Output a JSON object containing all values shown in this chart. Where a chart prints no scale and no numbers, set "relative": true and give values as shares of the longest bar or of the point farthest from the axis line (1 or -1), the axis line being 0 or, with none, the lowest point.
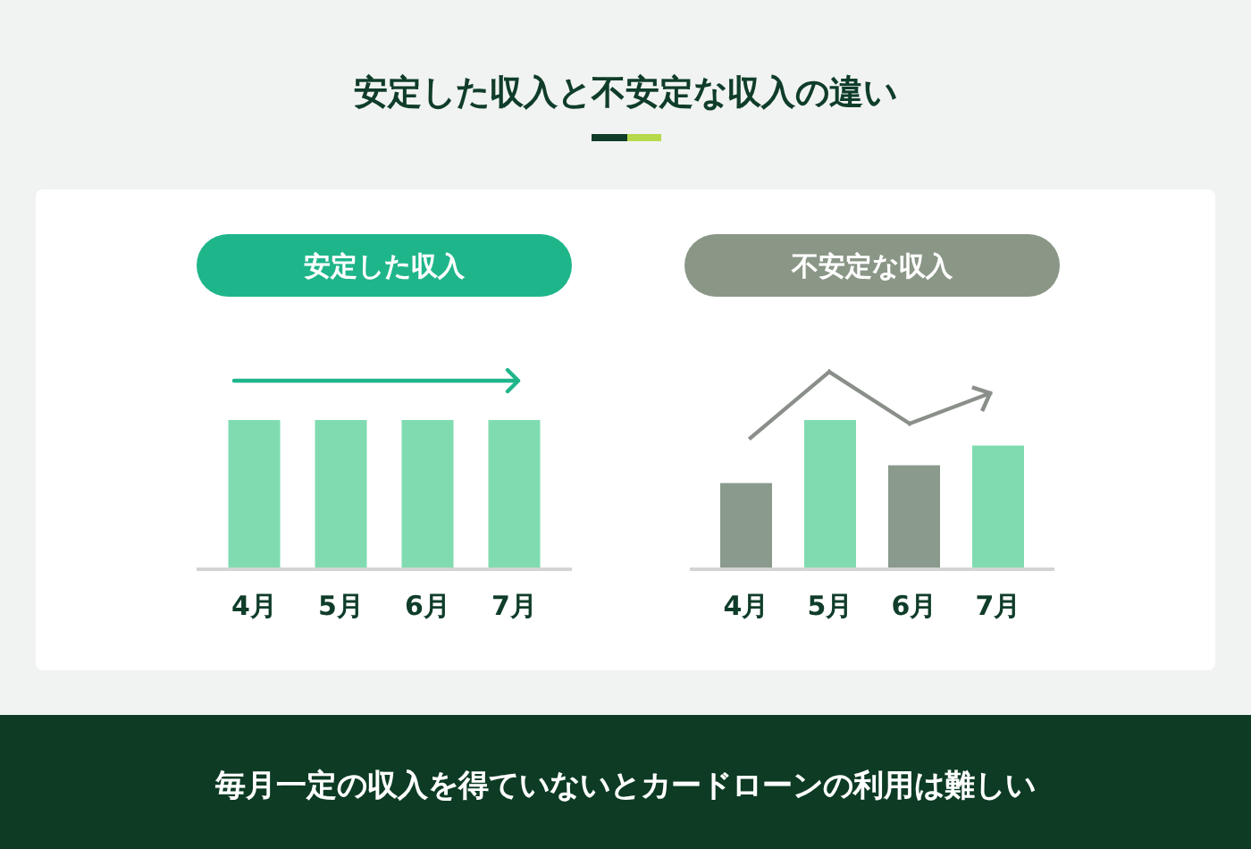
{
  "chart_data": [
    {
      "type": "other",
      "title": "安定した収入と不安定な収入の違い",
      "annotations": [
        "毎月一定の収入を得ていないとカードローンの利用は難しい"
      ]
    },
    {
      "type": "bar",
      "title": "安定した収入",
      "categories": [
        "4月",
        "5月",
        "6月",
        "7月"
      ],
      "values": [
        1,
        1,
        1,
        1
      ],
      "color": "#80dcb0",
      "relative": true
    },
    {
      "type": "bar",
      "title": "不安定な収入",
      "categories": [
        "4月",
        "5月",
        "6月",
        "7月"
      ],
      "values": [
        0.575,
        1,
        0.695,
        0.828
      ],
      "colors": [
        "#8a9a8c",
        "#80dcb0",
        "#8a9a8c",
        "#80dcb0"
      ],
      "relative": true
    }
  ]
}
